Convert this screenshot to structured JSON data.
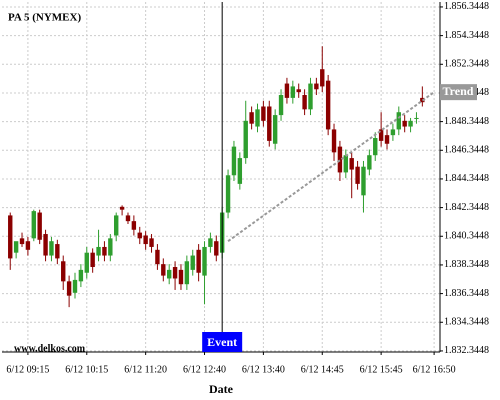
{
  "chart_data": {
    "type": "candlestick",
    "title": "PA 5 (NYMEX)",
    "watermark": "www.delkos.com",
    "x_label": "Date",
    "up_color": "#2e9e2e",
    "down_color": "#8b0000",
    "grid": true,
    "x": [
      0,
      1,
      2,
      3,
      4,
      5,
      6,
      7,
      8,
      9,
      10,
      11,
      12,
      13,
      14,
      15,
      16,
      17,
      18,
      19,
      20,
      21,
      22,
      23,
      24,
      25,
      26,
      27,
      28,
      29,
      30,
      31,
      32,
      33,
      34,
      35,
      36,
      37,
      38,
      39,
      40,
      41,
      42,
      43,
      44,
      45,
      46,
      47,
      48,
      49,
      50,
      51,
      52,
      53,
      54,
      55,
      56,
      57,
      58,
      59,
      60,
      61,
      62,
      63,
      64,
      65,
      66,
      67,
      68,
      69,
      70
    ],
    "open": [
      1.8418,
      1.8392,
      1.8402,
      1.84,
      1.8402,
      1.842,
      1.8405,
      1.839,
      1.8398,
      1.8386,
      1.8372,
      1.8364,
      1.8372,
      1.8378,
      1.8392,
      1.839,
      1.8396,
      1.839,
      1.8404,
      1.8424,
      1.8418,
      1.8414,
      1.8406,
      1.8404,
      1.8402,
      1.8394,
      1.8384,
      1.8374,
      1.8382,
      1.838,
      1.837,
      1.838,
      1.8394,
      1.8376,
      1.8396,
      1.84,
      1.8392,
      1.842,
      1.8446,
      1.844,
      1.8458,
      1.849,
      1.848,
      1.8494,
      1.8494,
      1.8468,
      1.8488,
      1.851,
      1.85,
      1.8506,
      1.8502,
      1.8492,
      1.851,
      1.852,
      1.8512,
      1.8478,
      1.8466,
      1.8448,
      1.8458,
      1.8452,
      1.8432,
      1.845,
      1.846,
      1.8478,
      1.8474,
      1.8474,
      1.8478,
      1.8484,
      1.848,
      1.8486,
      1.85
    ],
    "high": [
      1.842,
      1.8398,
      1.8406,
      1.8403,
      1.8422,
      1.8422,
      1.8408,
      1.8403,
      1.8401,
      1.839,
      1.8376,
      1.8378,
      1.8384,
      1.8396,
      1.8395,
      1.8408,
      1.84,
      1.8405,
      1.842,
      1.8425,
      1.842,
      1.8418,
      1.841,
      1.8407,
      1.8405,
      1.8398,
      1.8388,
      1.8384,
      1.8386,
      1.8384,
      1.839,
      1.8394,
      1.8398,
      1.84,
      1.8406,
      1.8404,
      1.8424,
      1.845,
      1.847,
      1.8462,
      1.8498,
      1.8494,
      1.8496,
      1.8498,
      1.8498,
      1.8492,
      1.8506,
      1.8514,
      1.8512,
      1.851,
      1.8506,
      1.8514,
      1.8514,
      1.8536,
      1.8516,
      1.8482,
      1.847,
      1.8464,
      1.8462,
      1.8456,
      1.8456,
      1.8464,
      1.8476,
      1.849,
      1.8478,
      1.8482,
      1.8494,
      1.8488,
      1.8486,
      1.849,
      1.8508
    ],
    "low": [
      1.838,
      1.8388,
      1.8396,
      1.839,
      1.84,
      1.8398,
      1.8386,
      1.8386,
      1.8384,
      1.8366,
      1.8354,
      1.836,
      1.8368,
      1.8374,
      1.8378,
      1.8386,
      1.8386,
      1.8386,
      1.84,
      1.8418,
      1.8412,
      1.8404,
      1.8398,
      1.8394,
      1.8392,
      1.838,
      1.8372,
      1.837,
      1.8366,
      1.8366,
      1.8366,
      1.8376,
      1.8372,
      1.8356,
      1.8392,
      1.8386,
      1.8388,
      1.8416,
      1.8442,
      1.8436,
      1.8454,
      1.8478,
      1.8476,
      1.848,
      1.8466,
      1.8464,
      1.8484,
      1.8496,
      1.8496,
      1.85,
      1.8488,
      1.8488,
      1.8502,
      1.8504,
      1.8474,
      1.8456,
      1.8442,
      1.8444,
      1.843,
      1.8436,
      1.842,
      1.8446,
      1.8456,
      1.8466,
      1.8464,
      1.847,
      1.8474,
      1.8476,
      1.8476,
      1.8482,
      1.8494
    ],
    "close": [
      1.8388,
      1.84,
      1.8398,
      1.8394,
      1.8421,
      1.8401,
      1.839,
      1.84,
      1.8388,
      1.8372,
      1.8362,
      1.8373,
      1.838,
      1.8392,
      1.8382,
      1.8396,
      1.839,
      1.8402,
      1.8418,
      1.8422,
      1.8414,
      1.8408,
      1.8402,
      1.8398,
      1.8396,
      1.8384,
      1.8376,
      1.838,
      1.8374,
      1.837,
      1.8386,
      1.839,
      1.8378,
      1.8396,
      1.8402,
      1.839,
      1.842,
      1.8446,
      1.8466,
      1.8458,
      1.8484,
      1.8482,
      1.8492,
      1.8484,
      1.847,
      1.8488,
      1.8502,
      1.85,
      1.8508,
      1.8504,
      1.8492,
      1.851,
      1.8506,
      1.8508,
      1.8478,
      1.8462,
      1.8448,
      1.846,
      1.845,
      1.844,
      1.8452,
      1.846,
      1.8472,
      1.847,
      1.8468,
      1.8478,
      1.849,
      1.848,
      1.8484,
      1.8486,
      1.8497
    ],
    "xlim": [
      -1.4,
      73
    ],
    "xticks": [
      {
        "value": 3,
        "label": "6/12 09:15"
      },
      {
        "value": 13,
        "label": "6/12 10:15"
      },
      {
        "value": 23,
        "label": "6/12 11:20"
      },
      {
        "value": 33,
        "label": "6/12 12:40"
      },
      {
        "value": 43,
        "label": "6/12 13:40"
      },
      {
        "value": 53,
        "label": "6/12 14:45"
      },
      {
        "value": 63,
        "label": "6/12 15:45"
      },
      {
        "value": 72,
        "label": "6/12 16:50"
      }
    ],
    "ylim": [
      1.83227,
      1.85669
    ],
    "yticks": [
      {
        "value": 1.8323448,
        "label": "1.832.3448"
      },
      {
        "value": 1.8343448,
        "label": "1.834.3448"
      },
      {
        "value": 1.8363448,
        "label": "1.836.3448"
      },
      {
        "value": 1.8383448,
        "label": "1.838.3448"
      },
      {
        "value": 1.8403448,
        "label": "1.840.3448"
      },
      {
        "value": 1.8423448,
        "label": "1.842.3448"
      },
      {
        "value": 1.8443448,
        "label": "1.844.3448"
      },
      {
        "value": 1.8463448,
        "label": "1.846.3448"
      },
      {
        "value": 1.8483448,
        "label": "1.848.3448"
      },
      {
        "value": 1.8503448,
        "label": "1.850.3448"
      },
      {
        "value": 1.8523448,
        "label": "1.852.3448"
      },
      {
        "value": 1.8543448,
        "label": "1.854.3448"
      },
      {
        "value": 1.8563448,
        "label": "1.856.3448"
      }
    ],
    "event": {
      "label": "Event",
      "x": 36,
      "color": "#0000ff"
    },
    "trend": {
      "label": "Trend",
      "x": [
        37,
        72
      ],
      "y": [
        1.84,
        1.8504
      ],
      "color": "#999999"
    }
  }
}
